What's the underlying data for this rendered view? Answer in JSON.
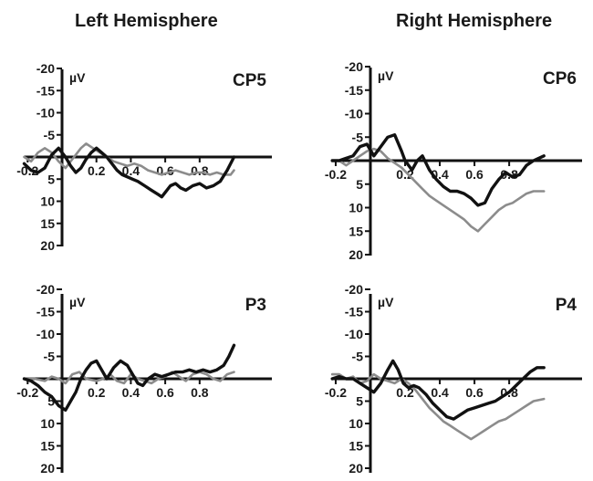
{
  "headers": {
    "left": "Left Hemisphere",
    "right": "Right Hemisphere"
  },
  "colors": {
    "series_dark": "#111111",
    "series_gray": "#8c8c8c",
    "axis": "#111111"
  },
  "chart_data": [
    {
      "type": "line",
      "title": "CP5",
      "unit": "µV",
      "xticks": [
        "-0.2",
        "0.2",
        "0.4",
        "0.6",
        "0.8"
      ],
      "yticks": [
        "-20",
        "-15",
        "-10",
        "-5",
        "5",
        "10",
        "15",
        "20"
      ],
      "xlim": [
        -0.22,
        1.0
      ],
      "ylim": [
        -20,
        20
      ],
      "y_inverted": true,
      "series": [
        {
          "values": [
            [
              -0.22,
              0
            ],
            [
              -0.18,
              1
            ],
            [
              -0.14,
              -1
            ],
            [
              -0.1,
              -2
            ],
            [
              -0.06,
              -1
            ],
            [
              -0.02,
              1
            ],
            [
              0.02,
              2.5
            ],
            [
              0.05,
              1
            ],
            [
              0.08,
              -0.5
            ],
            [
              0.11,
              -2
            ],
            [
              0.14,
              -3
            ],
            [
              0.18,
              -2
            ],
            [
              0.22,
              -1
            ],
            [
              0.26,
              0
            ],
            [
              0.3,
              1
            ],
            [
              0.34,
              1.5
            ],
            [
              0.38,
              2
            ],
            [
              0.42,
              1.5
            ],
            [
              0.46,
              2
            ],
            [
              0.5,
              3
            ],
            [
              0.54,
              3.5
            ],
            [
              0.58,
              4
            ],
            [
              0.62,
              3.5
            ],
            [
              0.66,
              3
            ],
            [
              0.7,
              3.5
            ],
            [
              0.74,
              4
            ],
            [
              0.78,
              3.5
            ],
            [
              0.82,
              3.5
            ],
            [
              0.86,
              4
            ],
            [
              0.9,
              3.5
            ],
            [
              0.94,
              4
            ],
            [
              0.98,
              4
            ],
            [
              1.0,
              3
            ]
          ]
        },
        {
          "values": [
            [
              -0.22,
              1.5
            ],
            [
              -0.18,
              3
            ],
            [
              -0.14,
              3.5
            ],
            [
              -0.1,
              2.5
            ],
            [
              -0.06,
              -0.5
            ],
            [
              -0.02,
              -2
            ],
            [
              0.02,
              0
            ],
            [
              0.05,
              2
            ],
            [
              0.08,
              3.5
            ],
            [
              0.11,
              2.5
            ],
            [
              0.14,
              0.5
            ],
            [
              0.17,
              -1
            ],
            [
              0.2,
              -2
            ],
            [
              0.23,
              -1
            ],
            [
              0.26,
              0
            ],
            [
              0.29,
              1.5
            ],
            [
              0.32,
              3
            ],
            [
              0.35,
              4
            ],
            [
              0.38,
              4.5
            ],
            [
              0.41,
              5
            ],
            [
              0.44,
              5.5
            ],
            [
              0.48,
              6.5
            ],
            [
              0.52,
              7.5
            ],
            [
              0.56,
              8.5
            ],
            [
              0.58,
              9
            ],
            [
              0.6,
              8
            ],
            [
              0.63,
              6.5
            ],
            [
              0.66,
              6
            ],
            [
              0.69,
              7
            ],
            [
              0.72,
              7.5
            ],
            [
              0.76,
              6.5
            ],
            [
              0.8,
              6
            ],
            [
              0.84,
              7
            ],
            [
              0.88,
              6.5
            ],
            [
              0.92,
              5.5
            ],
            [
              0.96,
              3
            ],
            [
              1.0,
              0
            ]
          ]
        }
      ]
    },
    {
      "type": "line",
      "title": "CP6",
      "unit": "µV",
      "xticks": [
        "-0.2",
        "0.2",
        "0.4",
        "0.6",
        "0.8"
      ],
      "yticks": [
        "-20",
        "-15",
        "-10",
        "-5",
        "5",
        "10",
        "15",
        "20"
      ],
      "xlim": [
        -0.22,
        1.0
      ],
      "ylim": [
        -20,
        20
      ],
      "y_inverted": true,
      "series": [
        {
          "values": [
            [
              -0.22,
              0
            ],
            [
              -0.18,
              0
            ],
            [
              -0.14,
              1
            ],
            [
              -0.1,
              0
            ],
            [
              -0.06,
              -1
            ],
            [
              -0.02,
              -2
            ],
            [
              0.02,
              -2.5
            ],
            [
              0.06,
              -2
            ],
            [
              0.1,
              -0.5
            ],
            [
              0.14,
              0.5
            ],
            [
              0.18,
              1.5
            ],
            [
              0.22,
              3
            ],
            [
              0.26,
              4.5
            ],
            [
              0.3,
              6
            ],
            [
              0.34,
              7.5
            ],
            [
              0.38,
              8.5
            ],
            [
              0.42,
              9.5
            ],
            [
              0.46,
              10.5
            ],
            [
              0.5,
              11.5
            ],
            [
              0.54,
              12.5
            ],
            [
              0.58,
              14
            ],
            [
              0.62,
              15
            ],
            [
              0.66,
              13.5
            ],
            [
              0.7,
              12
            ],
            [
              0.74,
              10.5
            ],
            [
              0.78,
              9.5
            ],
            [
              0.82,
              9
            ],
            [
              0.86,
              8
            ],
            [
              0.9,
              7
            ],
            [
              0.94,
              6.5
            ],
            [
              1.0,
              6.5
            ]
          ]
        },
        {
          "values": [
            [
              -0.22,
              0
            ],
            [
              -0.18,
              0
            ],
            [
              -0.14,
              -0.5
            ],
            [
              -0.1,
              -1
            ],
            [
              -0.06,
              -3
            ],
            [
              -0.02,
              -3.5
            ],
            [
              0.02,
              -1
            ],
            [
              0.06,
              -3
            ],
            [
              0.1,
              -5
            ],
            [
              0.14,
              -5.5
            ],
            [
              0.18,
              -2
            ],
            [
              0.2,
              0
            ],
            [
              0.24,
              2
            ],
            [
              0.27,
              0
            ],
            [
              0.3,
              -1
            ],
            [
              0.34,
              2
            ],
            [
              0.38,
              4
            ],
            [
              0.42,
              5.5
            ],
            [
              0.46,
              6.5
            ],
            [
              0.5,
              6.5
            ],
            [
              0.54,
              7
            ],
            [
              0.58,
              8
            ],
            [
              0.62,
              9.5
            ],
            [
              0.66,
              9
            ],
            [
              0.7,
              6
            ],
            [
              0.74,
              4
            ],
            [
              0.78,
              2.5
            ],
            [
              0.82,
              3.5
            ],
            [
              0.86,
              3
            ],
            [
              0.9,
              1
            ],
            [
              0.94,
              0
            ],
            [
              1.0,
              -1
            ]
          ]
        }
      ]
    },
    {
      "type": "line",
      "title": "P3",
      "unit": "µV",
      "xticks": [
        "-0.2",
        "0.2",
        "0.4",
        "0.6",
        "0.8"
      ],
      "yticks": [
        "-20",
        "-15",
        "-10",
        "-5",
        "5",
        "10",
        "15",
        "20"
      ],
      "xlim": [
        -0.22,
        1.0
      ],
      "ylim": [
        -20,
        20
      ],
      "y_inverted": true,
      "series": [
        {
          "values": [
            [
              -0.22,
              0
            ],
            [
              -0.16,
              0
            ],
            [
              -0.1,
              0.5
            ],
            [
              -0.06,
              -0.5
            ],
            [
              -0.02,
              0
            ],
            [
              0.02,
              1
            ],
            [
              0.06,
              -1
            ],
            [
              0.1,
              -1.5
            ],
            [
              0.14,
              0
            ],
            [
              0.2,
              0.5
            ],
            [
              0.24,
              0
            ],
            [
              0.28,
              -1
            ],
            [
              0.32,
              0.5
            ],
            [
              0.36,
              1
            ],
            [
              0.4,
              -1
            ],
            [
              0.44,
              0
            ],
            [
              0.48,
              0.5
            ],
            [
              0.52,
              1
            ],
            [
              0.56,
              0
            ],
            [
              0.6,
              -0.5
            ],
            [
              0.64,
              -1.5
            ],
            [
              0.68,
              -0.5
            ],
            [
              0.72,
              0.5
            ],
            [
              0.76,
              -1
            ],
            [
              0.8,
              -1.5
            ],
            [
              0.84,
              -1
            ],
            [
              0.88,
              0
            ],
            [
              0.92,
              0.5
            ],
            [
              0.96,
              -1
            ],
            [
              1.0,
              -1.5
            ]
          ]
        },
        {
          "values": [
            [
              -0.22,
              0
            ],
            [
              -0.18,
              0.5
            ],
            [
              -0.14,
              1.5
            ],
            [
              -0.1,
              3
            ],
            [
              -0.06,
              4
            ],
            [
              -0.02,
              6
            ],
            [
              0.02,
              7
            ],
            [
              0.05,
              5
            ],
            [
              0.08,
              3
            ],
            [
              0.11,
              0
            ],
            [
              0.14,
              -2
            ],
            [
              0.17,
              -3.5
            ],
            [
              0.2,
              -4
            ],
            [
              0.23,
              -2
            ],
            [
              0.26,
              0
            ],
            [
              0.3,
              -2.5
            ],
            [
              0.34,
              -4
            ],
            [
              0.38,
              -3
            ],
            [
              0.41,
              -1
            ],
            [
              0.44,
              1
            ],
            [
              0.47,
              1.5
            ],
            [
              0.5,
              0
            ],
            [
              0.54,
              -1
            ],
            [
              0.58,
              -0.5
            ],
            [
              0.62,
              -1
            ],
            [
              0.66,
              -1.5
            ],
            [
              0.7,
              -1.5
            ],
            [
              0.74,
              -2
            ],
            [
              0.78,
              -1.5
            ],
            [
              0.82,
              -2
            ],
            [
              0.86,
              -1.5
            ],
            [
              0.9,
              -2
            ],
            [
              0.94,
              -3
            ],
            [
              0.97,
              -5
            ],
            [
              1.0,
              -7.5
            ]
          ]
        }
      ]
    },
    {
      "type": "line",
      "title": "P4",
      "unit": "µV",
      "xticks": [
        "-0.2",
        "0.2",
        "0.4",
        "0.6",
        "0.8"
      ],
      "yticks": [
        "-20",
        "-15",
        "-10",
        "-5",
        "5",
        "10",
        "15",
        "20"
      ],
      "xlim": [
        -0.22,
        1.0
      ],
      "ylim": [
        -20,
        20
      ],
      "y_inverted": true,
      "series": [
        {
          "values": [
            [
              -0.22,
              -1
            ],
            [
              -0.18,
              -1
            ],
            [
              -0.14,
              0
            ],
            [
              -0.1,
              -0.5
            ],
            [
              -0.06,
              1
            ],
            [
              -0.02,
              0.5
            ],
            [
              0.02,
              -1
            ],
            [
              0.06,
              0
            ],
            [
              0.1,
              0.5
            ],
            [
              0.14,
              1
            ],
            [
              0.18,
              0
            ],
            [
              0.22,
              1
            ],
            [
              0.26,
              2.5
            ],
            [
              0.3,
              4.5
            ],
            [
              0.34,
              6.5
            ],
            [
              0.38,
              8
            ],
            [
              0.42,
              9.5
            ],
            [
              0.46,
              10.5
            ],
            [
              0.5,
              11.5
            ],
            [
              0.54,
              12.5
            ],
            [
              0.58,
              13.5
            ],
            [
              0.62,
              12.5
            ],
            [
              0.66,
              11.5
            ],
            [
              0.7,
              10.5
            ],
            [
              0.74,
              9.5
            ],
            [
              0.78,
              9
            ],
            [
              0.82,
              8
            ],
            [
              0.86,
              7
            ],
            [
              0.9,
              6
            ],
            [
              0.94,
              5
            ],
            [
              1.0,
              4.5
            ]
          ]
        },
        {
          "values": [
            [
              -0.22,
              0
            ],
            [
              -0.18,
              -0.5
            ],
            [
              -0.14,
              0
            ],
            [
              -0.1,
              0
            ],
            [
              -0.06,
              1
            ],
            [
              -0.02,
              2
            ],
            [
              0.02,
              3
            ],
            [
              0.06,
              1
            ],
            [
              0.1,
              -2
            ],
            [
              0.13,
              -4
            ],
            [
              0.16,
              -2
            ],
            [
              0.19,
              1
            ],
            [
              0.22,
              2
            ],
            [
              0.25,
              1.5
            ],
            [
              0.28,
              2
            ],
            [
              0.32,
              3.5
            ],
            [
              0.36,
              5.5
            ],
            [
              0.4,
              7
            ],
            [
              0.44,
              8.5
            ],
            [
              0.48,
              9
            ],
            [
              0.52,
              8
            ],
            [
              0.56,
              7
            ],
            [
              0.6,
              6.5
            ],
            [
              0.64,
              6
            ],
            [
              0.68,
              5.5
            ],
            [
              0.72,
              5
            ],
            [
              0.76,
              4
            ],
            [
              0.8,
              3
            ],
            [
              0.84,
              1.5
            ],
            [
              0.88,
              0
            ],
            [
              0.92,
              -1.5
            ],
            [
              0.96,
              -2.5
            ],
            [
              1.0,
              -2.5
            ]
          ]
        }
      ]
    }
  ]
}
